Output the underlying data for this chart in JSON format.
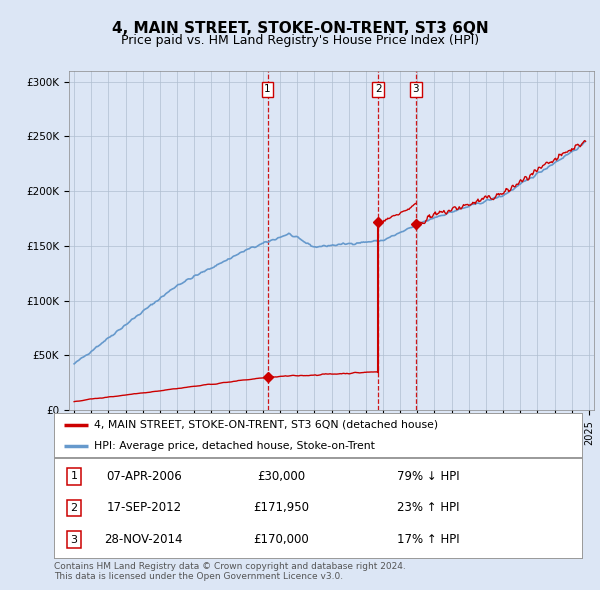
{
  "title": "4, MAIN STREET, STOKE-ON-TRENT, ST3 6QN",
  "subtitle": "Price paid vs. HM Land Registry's House Price Index (HPI)",
  "ylabel_ticks": [
    "£0",
    "£50K",
    "£100K",
    "£150K",
    "£200K",
    "£250K",
    "£300K"
  ],
  "ylim": [
    0,
    310000
  ],
  "xlim_start": 1994.7,
  "xlim_end": 2025.3,
  "sale_dates": [
    2006.27,
    2012.72,
    2014.91
  ],
  "sale_prices": [
    30000,
    171950,
    170000
  ],
  "sale_labels": [
    "1",
    "2",
    "3"
  ],
  "sale_info": [
    {
      "label": "1",
      "date": "07-APR-2006",
      "price": "£30,000",
      "hpi": "79% ↓ HPI"
    },
    {
      "label": "2",
      "date": "17-SEP-2012",
      "price": "£171,950",
      "hpi": "23% ↑ HPI"
    },
    {
      "label": "3",
      "date": "28-NOV-2014",
      "price": "£170,000",
      "hpi": "17% ↑ HPI"
    }
  ],
  "legend_entries": [
    {
      "label": "4, MAIN STREET, STOKE-ON-TRENT, ST3 6QN (detached house)",
      "color": "#cc0000",
      "lw": 2
    },
    {
      "label": "HPI: Average price, detached house, Stoke-on-Trent",
      "color": "#6699cc",
      "lw": 1.5
    }
  ],
  "footnote": "Contains HM Land Registry data © Crown copyright and database right 2024.\nThis data is licensed under the Open Government Licence v3.0.",
  "bg_color": "#dce6f5",
  "plot_bg": "#dce6f5",
  "grid_color": "#b0bfd0",
  "vline_color": "#cc0000",
  "title_fontsize": 11,
  "subtitle_fontsize": 9
}
